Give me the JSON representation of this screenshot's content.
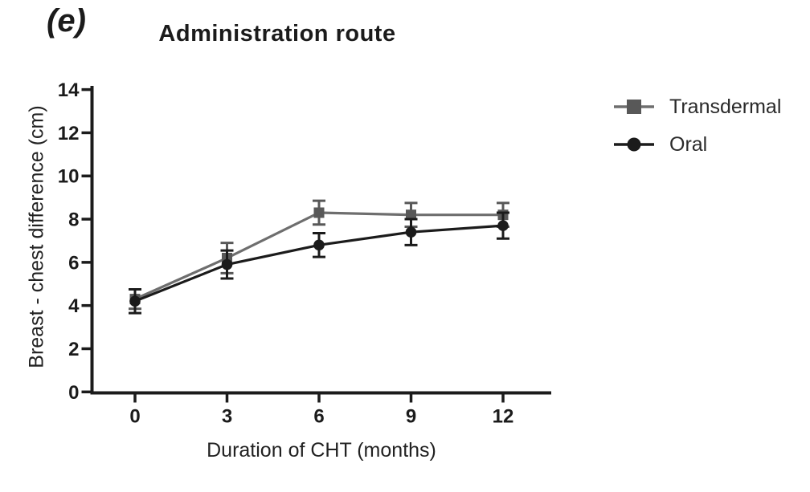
{
  "figure": {
    "panel_label": "(e)"
  },
  "chart_data": {
    "type": "line",
    "title": "Administration route",
    "xlabel": "Duration of CHT (months)",
    "ylabel": "Breast - chest difference (cm)",
    "x": [
      0,
      3,
      6,
      9,
      12
    ],
    "x_ticks": [
      "0",
      "3",
      "6",
      "9",
      "12"
    ],
    "y_ticks": [
      "0",
      "2",
      "4",
      "6",
      "8",
      "10",
      "12",
      "14"
    ],
    "xlim": [
      -1.5,
      13.6
    ],
    "ylim": [
      0,
      14
    ],
    "grid": false,
    "legend_position": "right",
    "error_bars": true,
    "axis_color": "#1b1b1b",
    "series": [
      {
        "name": "Transdermal",
        "marker": "square",
        "color": "#585858",
        "line_color": "#6e6e6e",
        "values": [
          4.3,
          6.2,
          8.3,
          8.2,
          8.2
        ],
        "errors": [
          0.45,
          0.7,
          0.55,
          0.55,
          0.55
        ]
      },
      {
        "name": "Oral",
        "marker": "circle",
        "color": "#1b1b1b",
        "line_color": "#1b1b1b",
        "values": [
          4.2,
          5.9,
          6.8,
          7.4,
          7.7
        ],
        "errors": [
          0.55,
          0.65,
          0.55,
          0.6,
          0.6
        ]
      }
    ]
  }
}
